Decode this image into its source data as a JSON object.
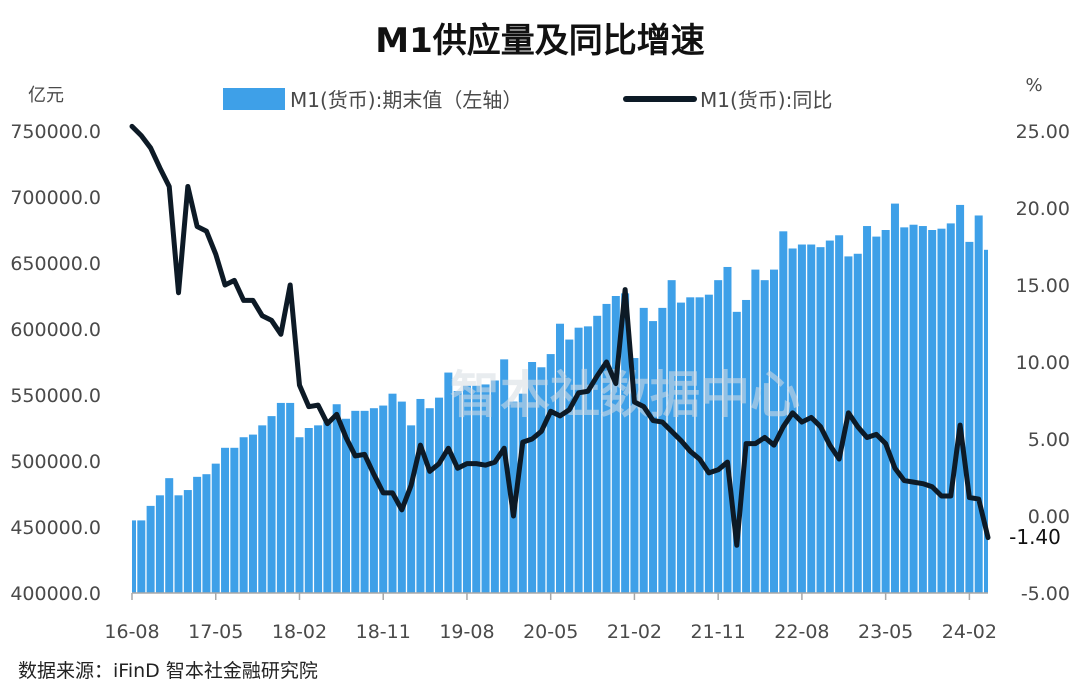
{
  "title": "M1供应量及同比增速",
  "units": {
    "left": "亿元",
    "right": "%"
  },
  "legend": {
    "bar": "M1(货币):期末值（左轴）",
    "line": "M1(货币):同比"
  },
  "source": "数据来源：iFinD 智本社金融研究院",
  "watermark": "智本社数据中心",
  "last_value_label": "-1.40",
  "colors": {
    "bar": "#3ea0e8",
    "line": "#0d1a26",
    "axis": "#4a4a4a"
  },
  "chart_data": {
    "type": "bar+line",
    "title": "M1供应量及同比增速",
    "x_ticks": [
      "16-08",
      "17-05",
      "18-02",
      "18-11",
      "19-08",
      "20-05",
      "21-02",
      "21-11",
      "22-08",
      "23-05",
      "24-02"
    ],
    "y_left": {
      "label": "亿元",
      "range": [
        400000,
        750000
      ],
      "ticks": [
        "400000.0",
        "450000.0",
        "500000.0",
        "550000.0",
        "600000.0",
        "650000.0",
        "700000.0",
        "750000.0"
      ]
    },
    "y_right": {
      "label": "%",
      "range": [
        -5,
        25
      ],
      "ticks": [
        "-5.00",
        "0.00",
        "5.00",
        "10.00",
        "15.00",
        "20.00",
        "25.00"
      ]
    },
    "grid": false,
    "legend_position": "top",
    "categories": [
      "16-08",
      "16-09",
      "16-10",
      "16-11",
      "16-12",
      "17-01",
      "17-02",
      "17-03",
      "17-04",
      "17-05",
      "17-06",
      "17-07",
      "17-08",
      "17-09",
      "17-10",
      "17-11",
      "17-12",
      "18-01",
      "18-02",
      "18-03",
      "18-04",
      "18-05",
      "18-06",
      "18-07",
      "18-08",
      "18-09",
      "18-10",
      "18-11",
      "18-12",
      "19-01",
      "19-02",
      "19-03",
      "19-04",
      "19-05",
      "19-06",
      "19-07",
      "19-08",
      "19-09",
      "19-10",
      "19-11",
      "19-12",
      "20-01",
      "20-02",
      "20-03",
      "20-04",
      "20-05",
      "20-06",
      "20-07",
      "20-08",
      "20-09",
      "20-10",
      "20-11",
      "20-12",
      "21-01",
      "21-02",
      "21-03",
      "21-04",
      "21-05",
      "21-06",
      "21-07",
      "21-08",
      "21-09",
      "21-10",
      "21-11",
      "21-12",
      "22-01",
      "22-02",
      "22-03",
      "22-04",
      "22-05",
      "22-06",
      "22-07",
      "22-08",
      "22-09",
      "22-10",
      "22-11",
      "22-12",
      "23-01",
      "23-02",
      "23-03",
      "23-04",
      "23-05",
      "23-06",
      "23-07",
      "23-08",
      "23-09",
      "23-10",
      "23-11",
      "23-12",
      "24-01",
      "24-02",
      "24-03",
      "24-04"
    ],
    "series": [
      {
        "name": "M1(货币):期末值（左轴）",
        "type": "bar",
        "axis": "left",
        "values": [
          455000,
          455000,
          466000,
          474000,
          487000,
          474000,
          478000,
          488000,
          490000,
          498000,
          510000,
          510000,
          518000,
          520000,
          527000,
          534000,
          544000,
          544000,
          518000,
          525000,
          527000,
          531000,
          543000,
          532000,
          538000,
          538000,
          540000,
          542000,
          551000,
          545000,
          527000,
          547000,
          540000,
          548000,
          567000,
          553000,
          557000,
          557000,
          558000,
          561000,
          577000,
          545000,
          551000,
          575000,
          571000,
          581000,
          604000,
          592000,
          601000,
          602000,
          610000,
          619000,
          625000,
          627000,
          578000,
          616000,
          606000,
          616000,
          637000,
          620000,
          624000,
          624000,
          626000,
          637000,
          647000,
          613000,
          622000,
          645000,
          637000,
          645000,
          674000,
          661000,
          664000,
          664000,
          662000,
          667000,
          671000,
          655000,
          657000,
          678000,
          670000,
          675000,
          695000,
          677000,
          679000,
          678000,
          675000,
          676000,
          680000,
          694000,
          666000,
          686000,
          660000
        ]
      },
      {
        "name": "M1(货币):同比",
        "type": "line",
        "axis": "right",
        "values": [
          25.3,
          24.7,
          23.9,
          22.6,
          21.4,
          14.5,
          21.4,
          18.8,
          18.5,
          17.0,
          15.0,
          15.3,
          14.0,
          14.0,
          13.0,
          12.7,
          11.8,
          15.0,
          8.5,
          7.1,
          7.2,
          6.0,
          6.6,
          5.1,
          3.9,
          4.0,
          2.7,
          1.5,
          1.5,
          0.4,
          2.0,
          4.6,
          2.9,
          3.4,
          4.4,
          3.1,
          3.4,
          3.4,
          3.3,
          3.5,
          4.4,
          0.0,
          4.8,
          5.0,
          5.5,
          6.8,
          6.5,
          6.9,
          8.0,
          8.1,
          9.1,
          10.0,
          8.6,
          14.7,
          7.4,
          7.1,
          6.2,
          6.1,
          5.5,
          4.9,
          4.2,
          3.7,
          2.8,
          3.0,
          3.5,
          -1.9,
          4.7,
          4.7,
          5.1,
          4.6,
          5.8,
          6.7,
          6.1,
          6.4,
          5.8,
          4.6,
          3.7,
          6.7,
          5.8,
          5.1,
          5.3,
          4.7,
          3.1,
          2.3,
          2.2,
          2.1,
          1.9,
          1.3,
          1.3,
          5.9,
          1.2,
          1.1,
          -1.4
        ]
      }
    ]
  }
}
